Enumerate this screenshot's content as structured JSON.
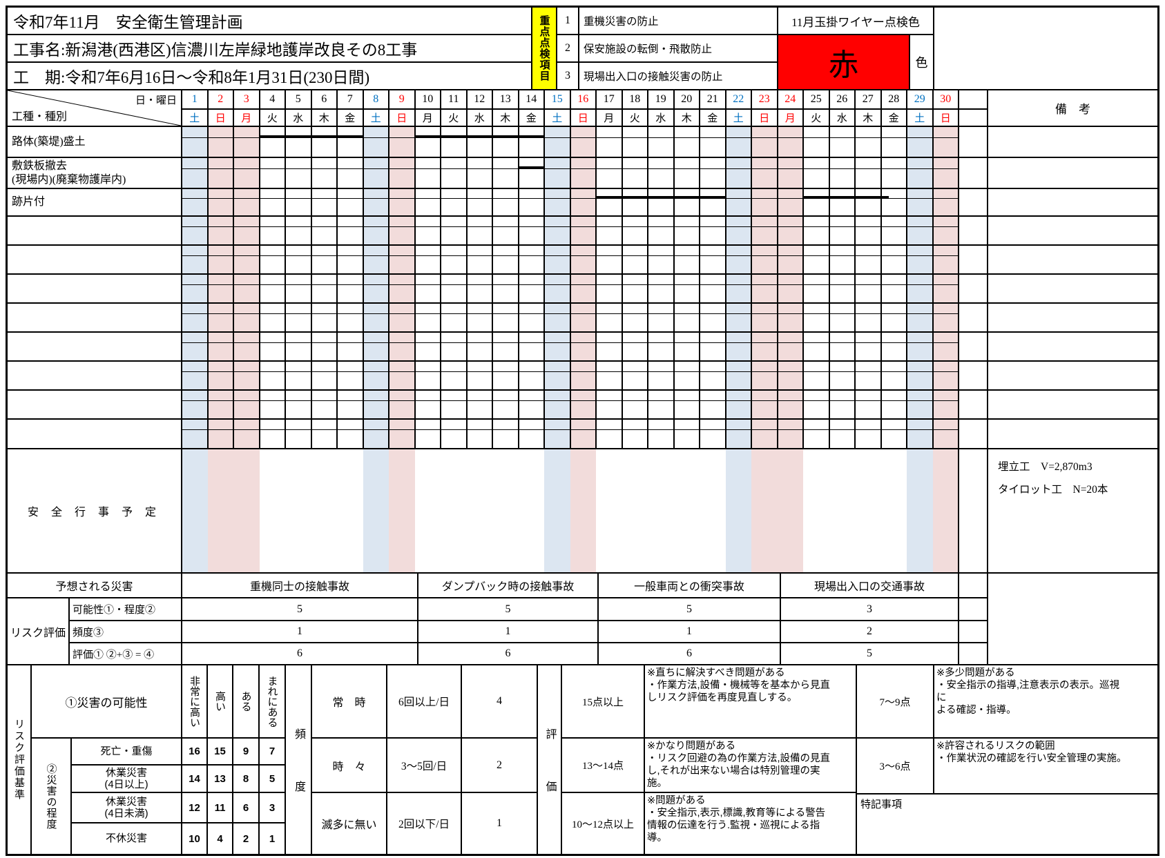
{
  "title_block": {
    "line1": "令和7年11月　安全衛生管理計画",
    "line2": "工事名:新潟港(西港区)信濃川左岸緑地護岸改良その8工事",
    "line3": "工　期:令和7年6月16日～令和8年1月31日(230日間)"
  },
  "priority_check": {
    "header_vertical": "重点点検項目",
    "items": [
      {
        "no": "1",
        "text": "重機災害の防止"
      },
      {
        "no": "2",
        "text": "保安施設の転倒・飛散防止"
      },
      {
        "no": "3",
        "text": "現場出入口の接触災害の防止"
      }
    ],
    "wire_check_label": "11月玉掛ワイヤー点検色",
    "wire_color_value": "赤",
    "wire_color_suffix": "色",
    "wire_color_hex": "#ff0000"
  },
  "calendar": {
    "corner_top": "日・曜日",
    "corner_bottom": "工種・種別",
    "remarks_header": "備　考",
    "event_row_label": "安 全 行 事 予 定",
    "remarks_notes": "埋立工　V=2,870m3\nタイロット工　N=20本",
    "days": [
      {
        "n": 1,
        "w": "土",
        "t": "sat"
      },
      {
        "n": 2,
        "w": "日",
        "t": "sun"
      },
      {
        "n": 3,
        "w": "月",
        "t": "hol"
      },
      {
        "n": 4,
        "w": "火",
        "t": "wd"
      },
      {
        "n": 5,
        "w": "水",
        "t": "wd"
      },
      {
        "n": 6,
        "w": "木",
        "t": "wd"
      },
      {
        "n": 7,
        "w": "金",
        "t": "wd"
      },
      {
        "n": 8,
        "w": "土",
        "t": "sat"
      },
      {
        "n": 9,
        "w": "日",
        "t": "sun"
      },
      {
        "n": 10,
        "w": "月",
        "t": "wd"
      },
      {
        "n": 11,
        "w": "火",
        "t": "wd"
      },
      {
        "n": 12,
        "w": "水",
        "t": "wd"
      },
      {
        "n": 13,
        "w": "木",
        "t": "wd"
      },
      {
        "n": 14,
        "w": "金",
        "t": "wd"
      },
      {
        "n": 15,
        "w": "土",
        "t": "sat"
      },
      {
        "n": 16,
        "w": "日",
        "t": "sun"
      },
      {
        "n": 17,
        "w": "月",
        "t": "wd"
      },
      {
        "n": 18,
        "w": "火",
        "t": "wd"
      },
      {
        "n": 19,
        "w": "水",
        "t": "wd"
      },
      {
        "n": 20,
        "w": "木",
        "t": "wd"
      },
      {
        "n": 21,
        "w": "金",
        "t": "wd"
      },
      {
        "n": 22,
        "w": "土",
        "t": "sat"
      },
      {
        "n": 23,
        "w": "日",
        "t": "sun"
      },
      {
        "n": 24,
        "w": "月",
        "t": "hol"
      },
      {
        "n": 25,
        "w": "火",
        "t": "wd"
      },
      {
        "n": 26,
        "w": "水",
        "t": "wd"
      },
      {
        "n": 27,
        "w": "木",
        "t": "wd"
      },
      {
        "n": 28,
        "w": "金",
        "t": "wd"
      },
      {
        "n": 29,
        "w": "土",
        "t": "sat"
      },
      {
        "n": 30,
        "w": "日",
        "t": "sun"
      }
    ],
    "rows": [
      {
        "label": "路体(築堤)盛土",
        "bars": [
          [
            4,
            8
          ],
          [
            10,
            15
          ]
        ]
      },
      {
        "label": "敷鉄板撤去\n(現場内)(廃棄物護岸内)",
        "bars": [
          [
            14,
            15
          ]
        ]
      },
      {
        "label": "跡片付",
        "bars": [
          [
            17,
            22
          ],
          [
            25,
            28.3
          ]
        ]
      },
      {
        "label": "",
        "bars": []
      },
      {
        "label": "",
        "bars": []
      },
      {
        "label": "",
        "bars": []
      },
      {
        "label": "",
        "bars": []
      },
      {
        "label": "",
        "bars": []
      },
      {
        "label": "",
        "bars": []
      },
      {
        "label": "",
        "bars": []
      },
      {
        "label": "",
        "bars": []
      }
    ]
  },
  "risk_assessment": {
    "expected_label": "予想される災害",
    "group_label": "リスク評価",
    "row_labels": [
      "可能性①・程度②",
      "頻度③",
      "評価① ②+③ = ④"
    ],
    "hazards": [
      {
        "name": "重機同士の接触事故",
        "possibility": "5",
        "frequency": "1",
        "evaluation": "6"
      },
      {
        "name": "ダンプバック時の接触事故",
        "possibility": "5",
        "frequency": "1",
        "evaluation": "6"
      },
      {
        "name": "一般車両との衝突事故",
        "possibility": "5",
        "frequency": "1",
        "evaluation": "6"
      },
      {
        "name": "現場出入口の交通事故",
        "possibility": "3",
        "frequency": "2",
        "evaluation": "5"
      }
    ]
  },
  "criteria": {
    "title_vertical": "リスク評価基準",
    "possibility_header": "①災害の可能性",
    "possibility_levels": [
      "非常に高い",
      "高い",
      "ある",
      "まれにある"
    ],
    "severity_header": "②災害の程度",
    "severity_rows": [
      {
        "label": "死亡・重傷",
        "values": [
          16,
          15,
          9,
          7
        ]
      },
      {
        "label": "休業災害\n(4日以上)",
        "values": [
          14,
          13,
          8,
          5
        ]
      },
      {
        "label": "休業災害\n(4日未満)",
        "values": [
          12,
          11,
          6,
          3
        ]
      },
      {
        "label": "不休災害",
        "values": [
          10,
          4,
          2,
          1
        ]
      }
    ],
    "frequency_header": "頻度",
    "frequency_rows": [
      {
        "label": "常　時",
        "desc": "6回以上/日",
        "score": "4"
      },
      {
        "label": "時　々",
        "desc": "3～5回/日",
        "score": "2"
      },
      {
        "label": "滅多に無い",
        "desc": "2回以下/日",
        "score": "1"
      }
    ],
    "evaluation_header": "評価",
    "evaluation_rows": [
      {
        "points": "15点以上",
        "note": "※直ちに解決すべき問題がある\n・作業方法,設備・機械等を基本から見直\nしリスク評価を再度見直しする。",
        "points2": "7～9点",
        "note2": "※多少問題がある\n・安全指示の指導,注意表示の表示。巡視\nに\nよる確認・指導。"
      },
      {
        "points": "13～14点",
        "note": "※かなり問題がある\n・リスク回避の為の作業方法,設備の見直\nし,それが出来ない場合は特別管理の実\n施。",
        "points2": "3～6点",
        "note2": "※許容されるリスクの範囲\n・作業状況の確認を行い安全管理の実施。"
      },
      {
        "points": "10～12点以上",
        "note": "※問題がある\n・安全指示,表示,標識,教育等による警告\n情報の伝達を行う.監視・巡視による指\n導。"
      }
    ],
    "special_notes_label": "特記事項"
  },
  "colors": {
    "saturday_text": "#0070c0",
    "sunday_text": "#ff0000",
    "saturday_fill": "#dce6f1",
    "sunday_fill": "#f2dcdb",
    "highlight_yellow": "#ffff00",
    "check_color_red": "#ff0000",
    "bar_color": "#000000"
  }
}
